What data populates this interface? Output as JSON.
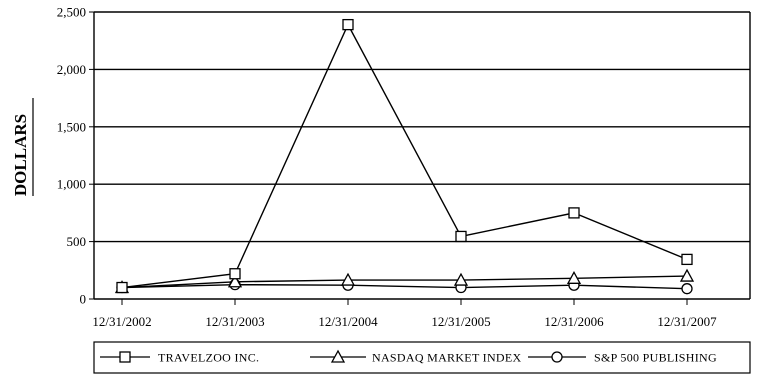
{
  "chart_data": {
    "type": "line",
    "title": "",
    "xlabel": "",
    "ylabel": "DOLLARS",
    "categories": [
      "12/31/2002",
      "12/31/2003",
      "12/31/2004",
      "12/31/2005",
      "12/31/2006",
      "12/31/2007"
    ],
    "ylim": [
      0,
      2500
    ],
    "yticks": [
      0,
      500,
      1000,
      1500,
      2000,
      2500
    ],
    "ytick_labels": [
      "0",
      "500",
      "1,000",
      "1,500",
      "2,000",
      "2,500"
    ],
    "grid": "horizontal",
    "legend_position": "bottom",
    "series": [
      {
        "name": "TRAVELZOO INC.",
        "marker": "square",
        "values": [
          100,
          220,
          2390,
          545,
          750,
          345
        ]
      },
      {
        "name": "NASDAQ MARKET INDEX",
        "marker": "triangle",
        "values": [
          100,
          150,
          165,
          165,
          180,
          200
        ]
      },
      {
        "name": "S&P 500 PUBLISHING",
        "marker": "circle",
        "values": [
          100,
          125,
          120,
          100,
          120,
          90
        ]
      }
    ]
  }
}
